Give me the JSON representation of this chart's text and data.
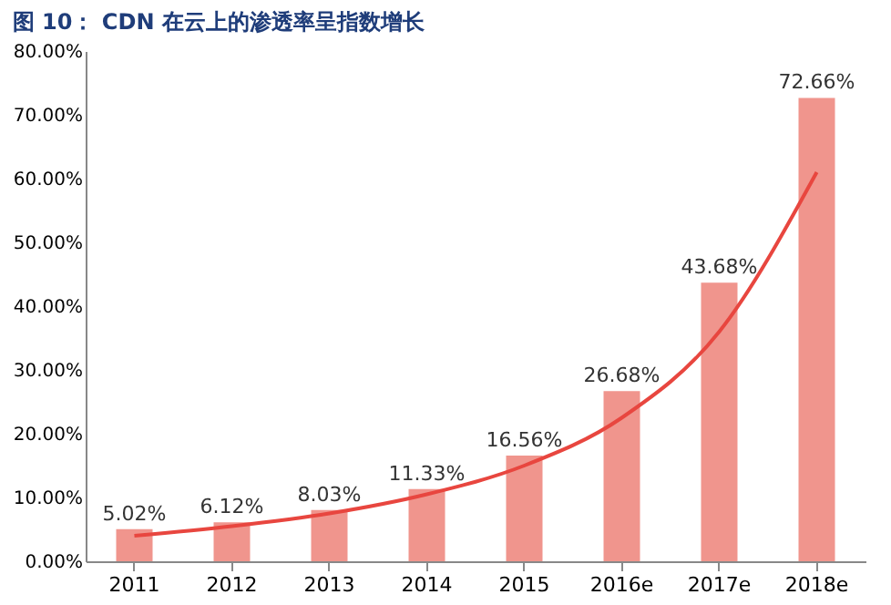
{
  "chart_data": {
    "type": "bar",
    "title": "图 10： CDN 在云上的渗透率呈指数增长",
    "categories": [
      "2011",
      "2012",
      "2013",
      "2014",
      "2015",
      "2016e",
      "2017e",
      "2018e"
    ],
    "series": [
      {
        "color": "#f0958d",
        "values": [
          5.02,
          6.12,
          8.03,
          11.33,
          16.56,
          26.68,
          43.68,
          72.66
        ],
        "value_labels": [
          "5.02%",
          "6.12%",
          "8.03%",
          "11.33%",
          "16.56%",
          "26.68%",
          "43.68%",
          "72.66%"
        ]
      },
      {
        "type": "line",
        "color": "#e8463f",
        "values": [
          4.0,
          5.5,
          7.5,
          10.5,
          15.0,
          22.5,
          36.0,
          61.0
        ]
      }
    ],
    "ylim": [
      0,
      80
    ],
    "yticks": [
      {
        "value": 0,
        "label": "0.00%"
      },
      {
        "value": 10,
        "label": "10.00%"
      },
      {
        "value": 20,
        "label": "20.00%"
      },
      {
        "value": 30,
        "label": "30.00%"
      },
      {
        "value": 40,
        "label": "40.00%"
      },
      {
        "value": 50,
        "label": "50.00%"
      },
      {
        "value": 60,
        "label": "60.00%"
      },
      {
        "value": 70,
        "label": "70.00%"
      },
      {
        "value": 80,
        "label": "80.00%"
      }
    ]
  }
}
